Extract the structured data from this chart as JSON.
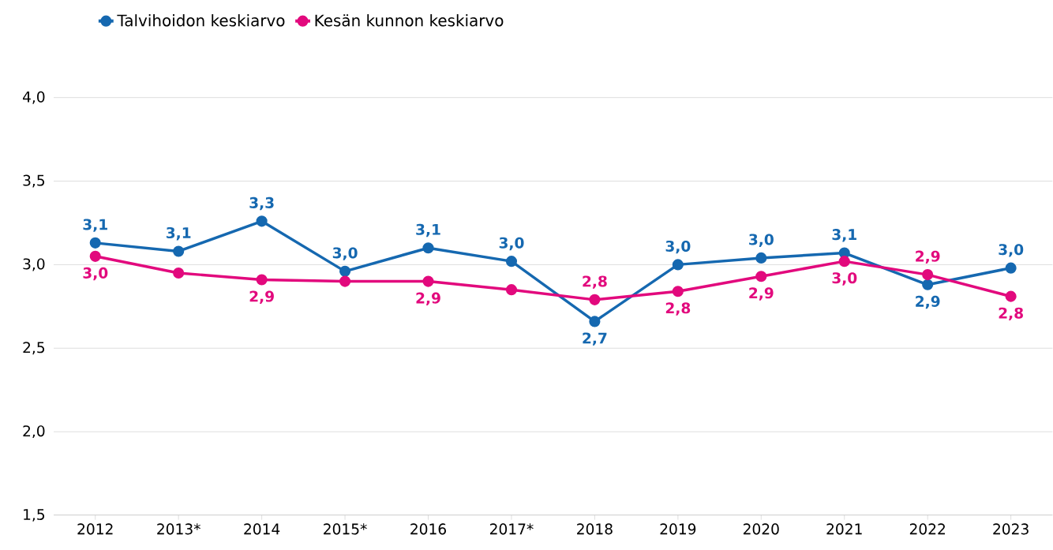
{
  "chart_data": {
    "type": "line",
    "categories": [
      "2012",
      "2013*",
      "2014",
      "2015*",
      "2016",
      "2017*",
      "2018",
      "2019",
      "2020",
      "2021",
      "2022",
      "2023"
    ],
    "series": [
      {
        "name": "Talvihoidon keskiarvo",
        "color": "#1568b0",
        "values": [
          3.13,
          3.08,
          3.26,
          2.96,
          3.1,
          3.02,
          2.66,
          3.0,
          3.04,
          3.07,
          2.88,
          2.98
        ],
        "value_labels": [
          "3,1",
          "3,1",
          "3,3",
          "3,0",
          "3,1",
          "3,0",
          "2,7",
          "3,0",
          "3,0",
          "3,1",
          "2,9",
          "3,0"
        ]
      },
      {
        "name": "Kesän kunnon keskiarvo",
        "color": "#e2097d",
        "values": [
          3.05,
          2.95,
          2.91,
          2.9,
          2.9,
          2.85,
          2.79,
          2.84,
          2.93,
          3.02,
          2.94,
          2.81
        ],
        "value_labels": [
          "3,0",
          null,
          "2,9",
          null,
          "2,9",
          null,
          "2,8",
          "2,8",
          "2,9",
          "3,0",
          "2,9",
          "2,8"
        ]
      }
    ],
    "ylim": [
      1.5,
      4.0
    ],
    "yticks": [
      {
        "value": 1.5,
        "label": "1,5"
      },
      {
        "value": 2.0,
        "label": "2,0"
      },
      {
        "value": 2.5,
        "label": "2,5"
      },
      {
        "value": 3.0,
        "label": "3,0"
      },
      {
        "value": 3.5,
        "label": "3,5"
      },
      {
        "value": 4.0,
        "label": "4,0"
      }
    ],
    "grid": "y",
    "legend": "top left",
    "marker": "circle",
    "line_style": "solid"
  }
}
